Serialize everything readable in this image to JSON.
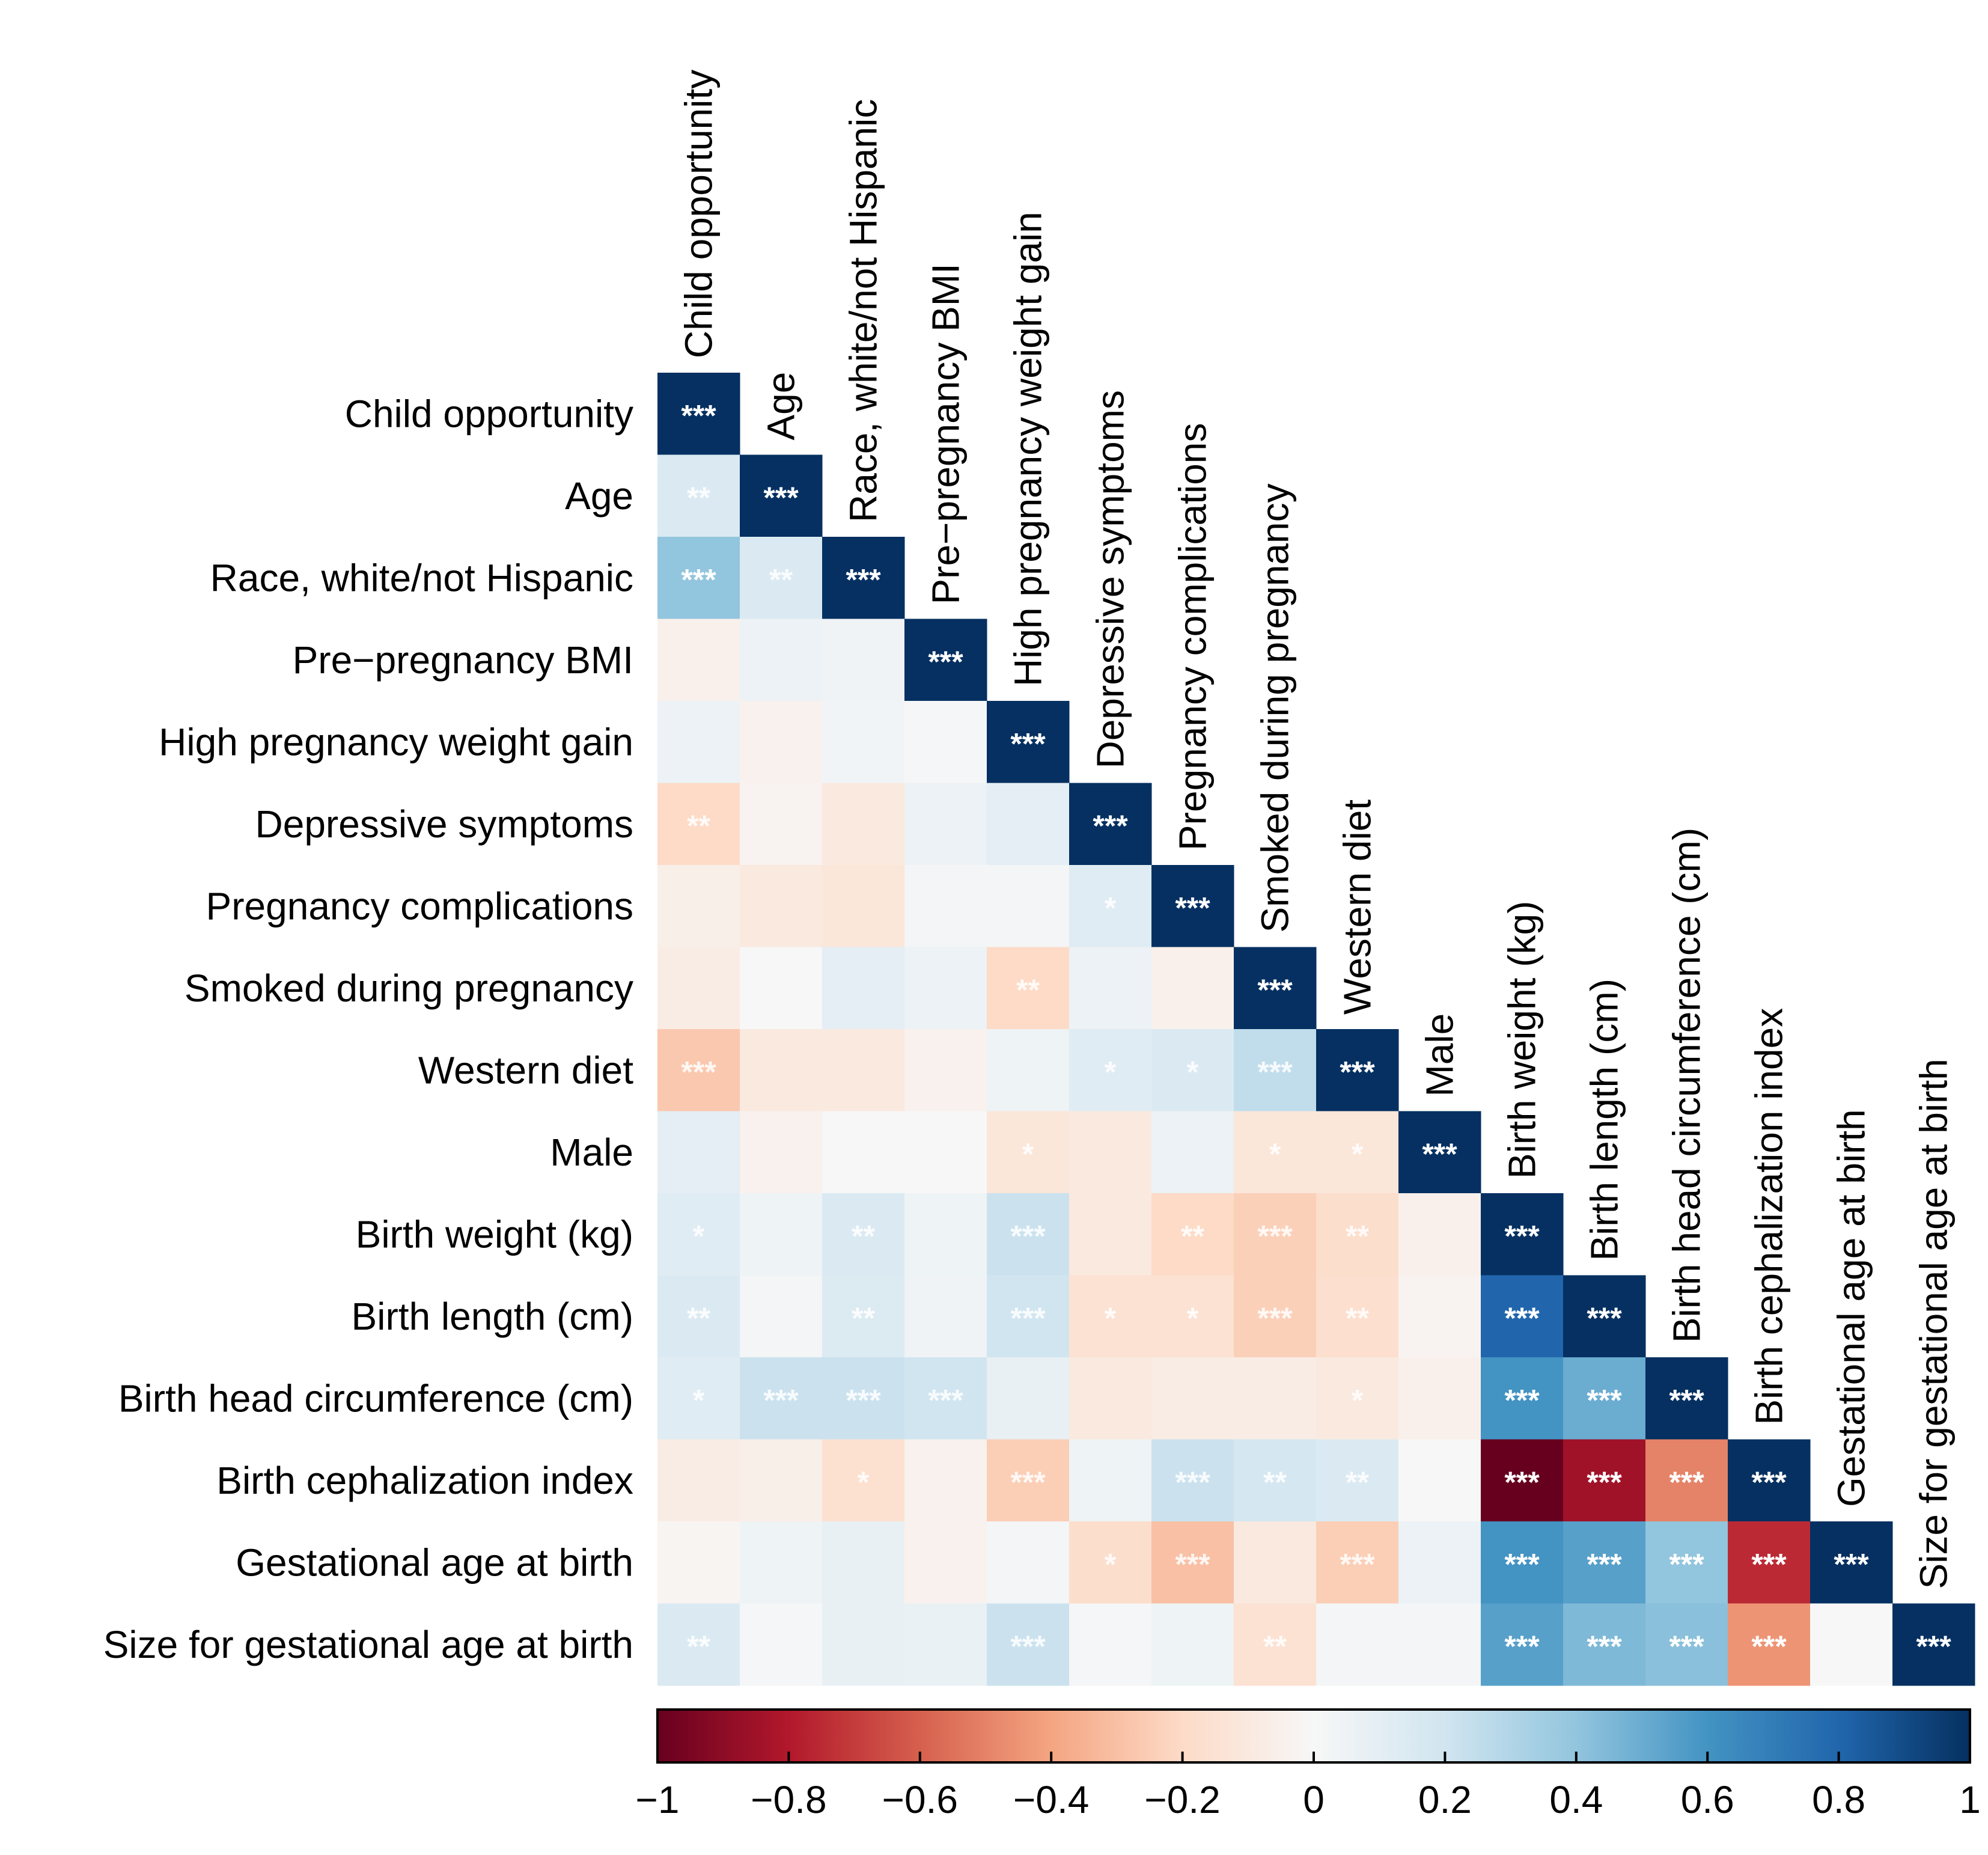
{
  "chart_data": {
    "type": "heatmap",
    "title": "",
    "variables": [
      "Child opportunity",
      "Age",
      "Race, white/not Hispanic",
      "Pre−pregnancy BMI",
      "High pregnancy weight gain",
      "Depressive symptoms",
      "Pregnancy complications",
      "Smoked during pregnancy",
      "Western diet",
      "Male",
      "Birth weight (kg)",
      "Birth length (cm)",
      "Birth head circumference (cm)",
      "Birth cephalization index",
      "Gestational age at birth",
      "Size for gestational age at birth"
    ],
    "matrix": [
      [
        1.0
      ],
      [
        0.15,
        1.0
      ],
      [
        0.4,
        0.15,
        1.0
      ],
      [
        -0.05,
        0.06,
        0.04,
        1.0
      ],
      [
        0.06,
        -0.04,
        0.03,
        0.01,
        1.0
      ],
      [
        -0.2,
        -0.03,
        -0.1,
        0.06,
        0.1,
        1.0
      ],
      [
        -0.06,
        -0.1,
        -0.12,
        0.02,
        0.02,
        0.12,
        1.0
      ],
      [
        -0.08,
        0.0,
        0.1,
        0.06,
        -0.2,
        0.06,
        -0.05,
        1.0
      ],
      [
        -0.27,
        -0.1,
        -0.1,
        -0.04,
        0.05,
        0.12,
        0.15,
        0.25,
        1.0
      ],
      [
        0.1,
        -0.04,
        0.0,
        0.0,
        -0.12,
        -0.1,
        0.06,
        -0.12,
        -0.12,
        1.0
      ],
      [
        0.12,
        0.05,
        0.15,
        0.05,
        0.22,
        -0.1,
        -0.2,
        -0.24,
        -0.18,
        -0.05,
        1.0
      ],
      [
        0.15,
        0.02,
        0.14,
        0.04,
        0.2,
        -0.15,
        -0.15,
        -0.24,
        -0.17,
        -0.03,
        0.8,
        1.0
      ],
      [
        0.12,
        0.22,
        0.22,
        0.2,
        0.08,
        -0.1,
        -0.08,
        -0.08,
        -0.1,
        -0.05,
        0.6,
        0.5,
        1.0
      ],
      [
        -0.08,
        -0.06,
        -0.16,
        -0.04,
        -0.25,
        0.05,
        0.22,
        0.18,
        0.15,
        0.0,
        -1.0,
        -0.85,
        -0.5,
        1.0
      ],
      [
        -0.02,
        0.05,
        0.08,
        -0.04,
        0.02,
        -0.18,
        -0.3,
        -0.1,
        -0.25,
        0.06,
        0.6,
        0.55,
        0.4,
        -0.75,
        1.0
      ],
      [
        0.15,
        0.01,
        0.08,
        0.07,
        0.22,
        0.01,
        0.05,
        -0.15,
        0.02,
        0.02,
        0.55,
        0.45,
        0.42,
        -0.45,
        0.0,
        1.0
      ]
    ],
    "significance": [
      [
        "***"
      ],
      [
        "**",
        "***"
      ],
      [
        "***",
        "**",
        "***"
      ],
      [
        "",
        "",
        "",
        "***"
      ],
      [
        "",
        "",
        "",
        "",
        "***"
      ],
      [
        "**",
        "",
        "",
        "",
        "",
        "***"
      ],
      [
        "",
        "",
        "",
        "",
        "",
        "*",
        "***"
      ],
      [
        "",
        "",
        "",
        "",
        "**",
        "",
        "",
        "***"
      ],
      [
        "***",
        "",
        "",
        "",
        "",
        "*",
        "*",
        "***",
        "***"
      ],
      [
        "",
        "",
        "",
        "",
        "*",
        "",
        "",
        "*",
        "*",
        "***"
      ],
      [
        "*",
        "",
        "**",
        "",
        "***",
        "",
        "**",
        "***",
        "**",
        "",
        "***"
      ],
      [
        "**",
        "",
        "**",
        "",
        "***",
        "*",
        "*",
        "***",
        "**",
        "",
        "***",
        "***"
      ],
      [
        "*",
        "***",
        "***",
        "***",
        "",
        "",
        "",
        "",
        "*",
        "",
        "***",
        "***",
        "***"
      ],
      [
        "",
        "",
        "*",
        "",
        "***",
        "",
        "***",
        "**",
        "**",
        "",
        "***",
        "***",
        "***",
        "***"
      ],
      [
        "",
        "",
        "",
        "",
        "",
        "*",
        "***",
        "",
        "***",
        "",
        "***",
        "***",
        "***",
        "***",
        "***"
      ],
      [
        "**",
        "",
        "",
        "",
        "***",
        "",
        "",
        "**",
        "",
        "",
        "***",
        "***",
        "***",
        "***",
        "",
        "***"
      ]
    ],
    "colorbar": {
      "range": [
        -1,
        1
      ],
      "ticks": [
        "−1",
        "−0.8",
        "−0.6",
        "−0.4",
        "−0.2",
        "0",
        "0.2",
        "0.4",
        "0.6",
        "0.8",
        "1"
      ],
      "colors": [
        "#67001f",
        "#b2182b",
        "#d6604d",
        "#f4a582",
        "#fddbc7",
        "#f7f7f7",
        "#d1e5f0",
        "#92c5de",
        "#4393c3",
        "#2166ac",
        "#053061"
      ]
    }
  }
}
